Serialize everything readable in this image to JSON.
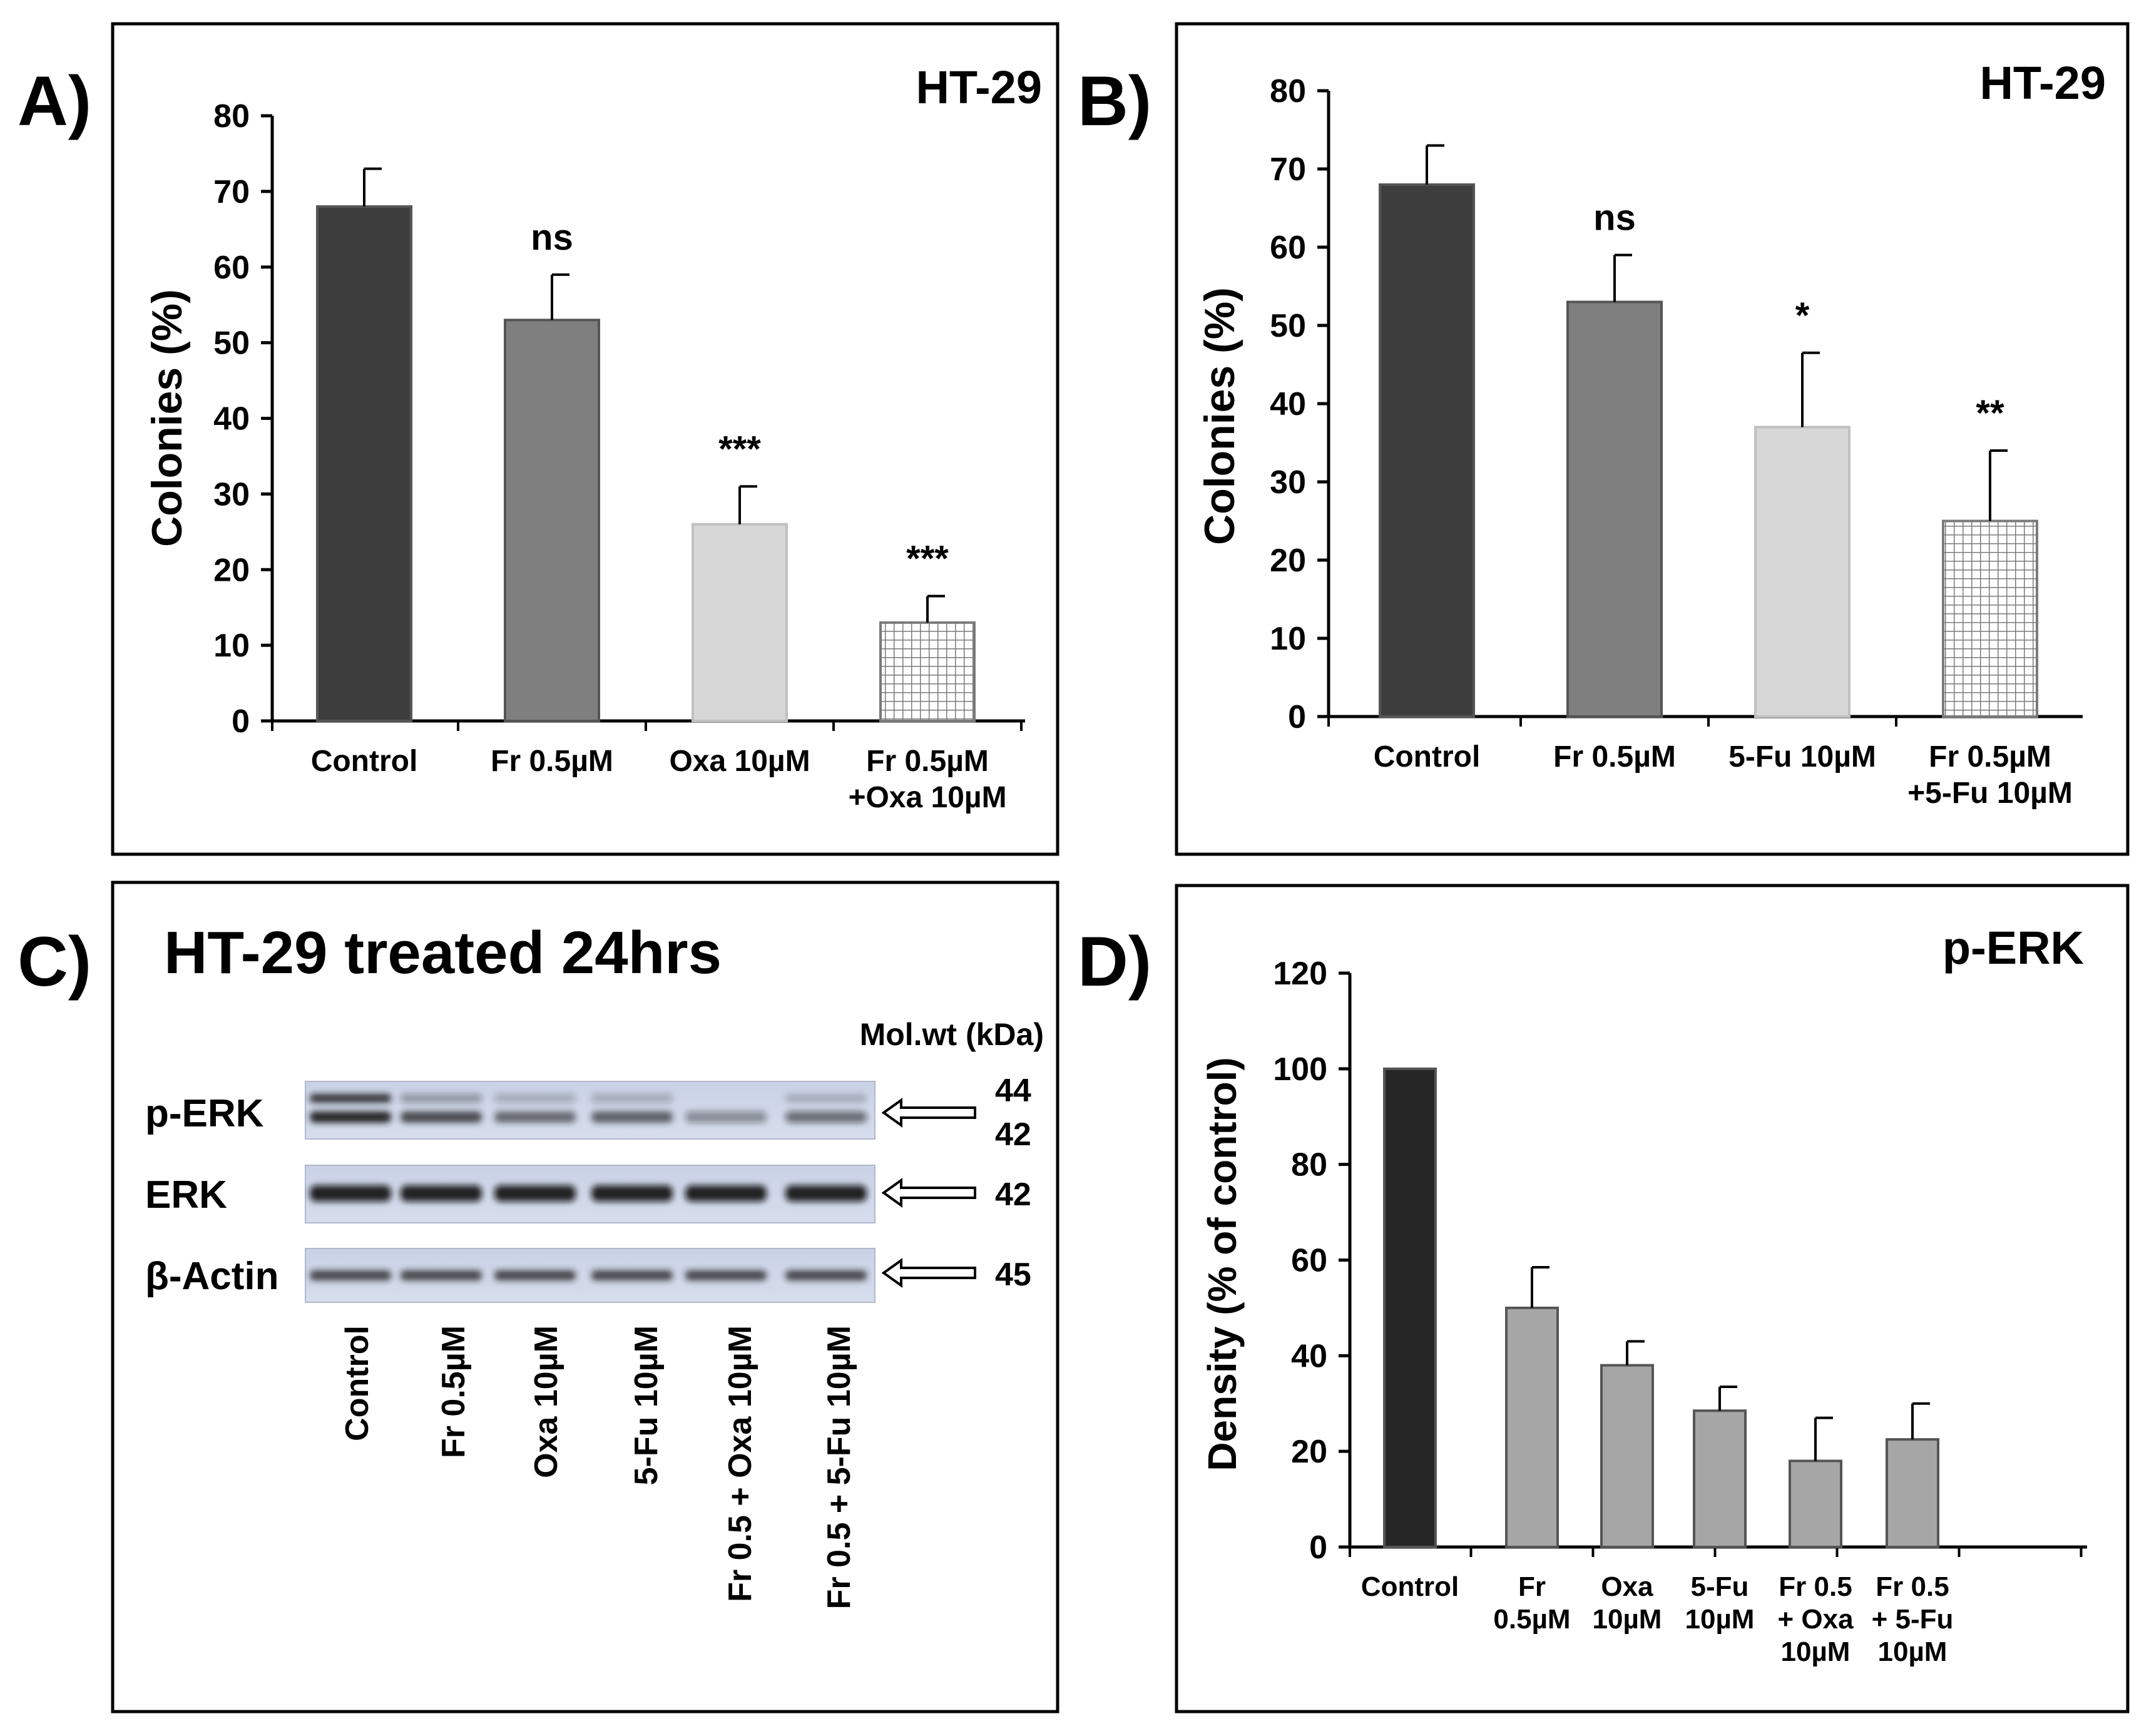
{
  "panels": {
    "A": {
      "letter": "A)"
    },
    "B": {
      "letter": "B)"
    },
    "C": {
      "letter": "C)",
      "title": "HT-29 treated 24hrs",
      "molwt_header": "Mol.wt (kDa)",
      "rows": [
        {
          "label": "p-ERK",
          "kda": [
            "44",
            "42"
          ]
        },
        {
          "label": "ERK",
          "kda": [
            "42"
          ]
        },
        {
          "label": "β-Actin",
          "kda": [
            "45"
          ]
        }
      ],
      "lanes": [
        "Control",
        "Fr 0.5µM",
        "Oxa 10µM",
        "5-Fu 10µM",
        "Fr 0.5 + Oxa 10µM",
        "Fr 0.5 + 5-Fu 10µM"
      ]
    },
    "D": {
      "letter": "D)"
    }
  },
  "chart_data": [
    {
      "id": "A",
      "type": "bar",
      "title": "HT-29",
      "ylabel": "Colonies (%)",
      "ylim": [
        0,
        80
      ],
      "yticks": [
        0,
        10,
        20,
        30,
        40,
        50,
        60,
        70,
        80
      ],
      "categories": [
        [
          "Control"
        ],
        [
          "Fr 0.5µM"
        ],
        [
          "Oxa 10µM"
        ],
        [
          "Fr 0.5µM",
          "+Oxa 10µM"
        ]
      ],
      "values": [
        68,
        53,
        26,
        13
      ],
      "errors": [
        5,
        6,
        5,
        3.5
      ],
      "significance": [
        "",
        "ns",
        "***",
        "***"
      ],
      "colors": [
        "#3d3d3d",
        "#7f7f7f",
        "#d7d7d7",
        "grid"
      ]
    },
    {
      "id": "B",
      "type": "bar",
      "title": "HT-29",
      "ylabel": "Colonies (%)",
      "ylim": [
        0,
        80
      ],
      "yticks": [
        0,
        10,
        20,
        30,
        40,
        50,
        60,
        70,
        80
      ],
      "categories": [
        [
          "Control"
        ],
        [
          "Fr 0.5µM"
        ],
        [
          "5-Fu 10µM"
        ],
        [
          "Fr 0.5µM",
          "+5-Fu 10µM"
        ]
      ],
      "values": [
        68,
        53,
        37,
        25
      ],
      "errors": [
        5,
        6,
        9.5,
        9
      ],
      "significance": [
        "",
        "ns",
        "*",
        "**"
      ],
      "colors": [
        "#3d3d3d",
        "#7f7f7f",
        "#d7d7d7",
        "grid"
      ]
    },
    {
      "id": "D",
      "type": "bar",
      "title": "p-ERK",
      "ylabel": "Density (% of control)",
      "ylim": [
        0,
        120
      ],
      "yticks": [
        0,
        20,
        40,
        60,
        80,
        100,
        120
      ],
      "categories": [
        [
          "Control"
        ],
        [
          "Fr",
          "0.5µM"
        ],
        [
          "Oxa",
          "10µM"
        ],
        [
          "5-Fu",
          "10µM"
        ],
        [
          "Fr 0.5",
          "+ Oxa",
          "10µM"
        ],
        [
          "Fr 0.5",
          "+ 5-Fu",
          "10µM"
        ]
      ],
      "values": [
        100,
        50,
        38,
        28.5,
        18,
        22.5
      ],
      "errors": [
        0,
        8.5,
        5,
        5,
        9,
        7.5
      ],
      "significance": [
        "",
        "",
        "",
        "",
        "",
        ""
      ],
      "colors": [
        "#262626",
        "#a6a6a6",
        "#a6a6a6",
        "#a6a6a6",
        "#a6a6a6",
        "#a6a6a6"
      ]
    }
  ]
}
